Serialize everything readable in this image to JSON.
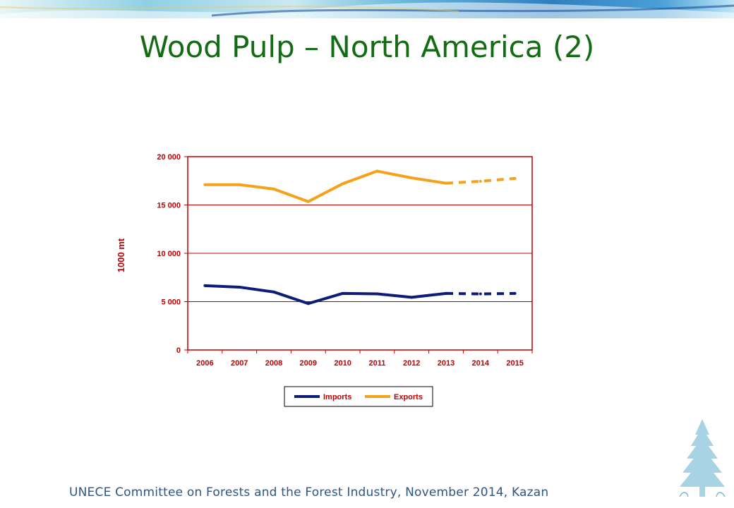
{
  "slide": {
    "title": "Wood Pulp – North America (2)",
    "footer": "UNECE Committee on Forests and the Forest Industry, November 2014, Kazan"
  },
  "colors": {
    "title": "#136b13",
    "axis": "#c00000",
    "imports": "#0d1c7a",
    "exports": "#f4a21c",
    "footer": "#2f5582"
  },
  "chart_data": {
    "type": "line",
    "categories": [
      "2006",
      "2007",
      "2008",
      "2009",
      "2010",
      "2011",
      "2012",
      "2013",
      "2014",
      "2015"
    ],
    "ylabel": "1000 mt",
    "ylim": [
      0,
      20000
    ],
    "yticks": [
      0,
      5000,
      10000,
      15000,
      20000
    ],
    "ytick_labels": [
      "0",
      "5 000",
      "10 000",
      "15 000",
      "20 000"
    ],
    "grid": true,
    "legend_position": "bottom",
    "projection_start": "2013",
    "series": [
      {
        "name": "Imports",
        "color": "#0d1c7a",
        "values": [
          6650,
          6500,
          6000,
          4800,
          5850,
          5800,
          5450,
          5850,
          5800,
          5850
        ]
      },
      {
        "name": "Exports",
        "color": "#f4a21c",
        "values": [
          17100,
          17100,
          16650,
          15350,
          17200,
          18500,
          17800,
          17250,
          17450,
          17750
        ]
      }
    ]
  }
}
